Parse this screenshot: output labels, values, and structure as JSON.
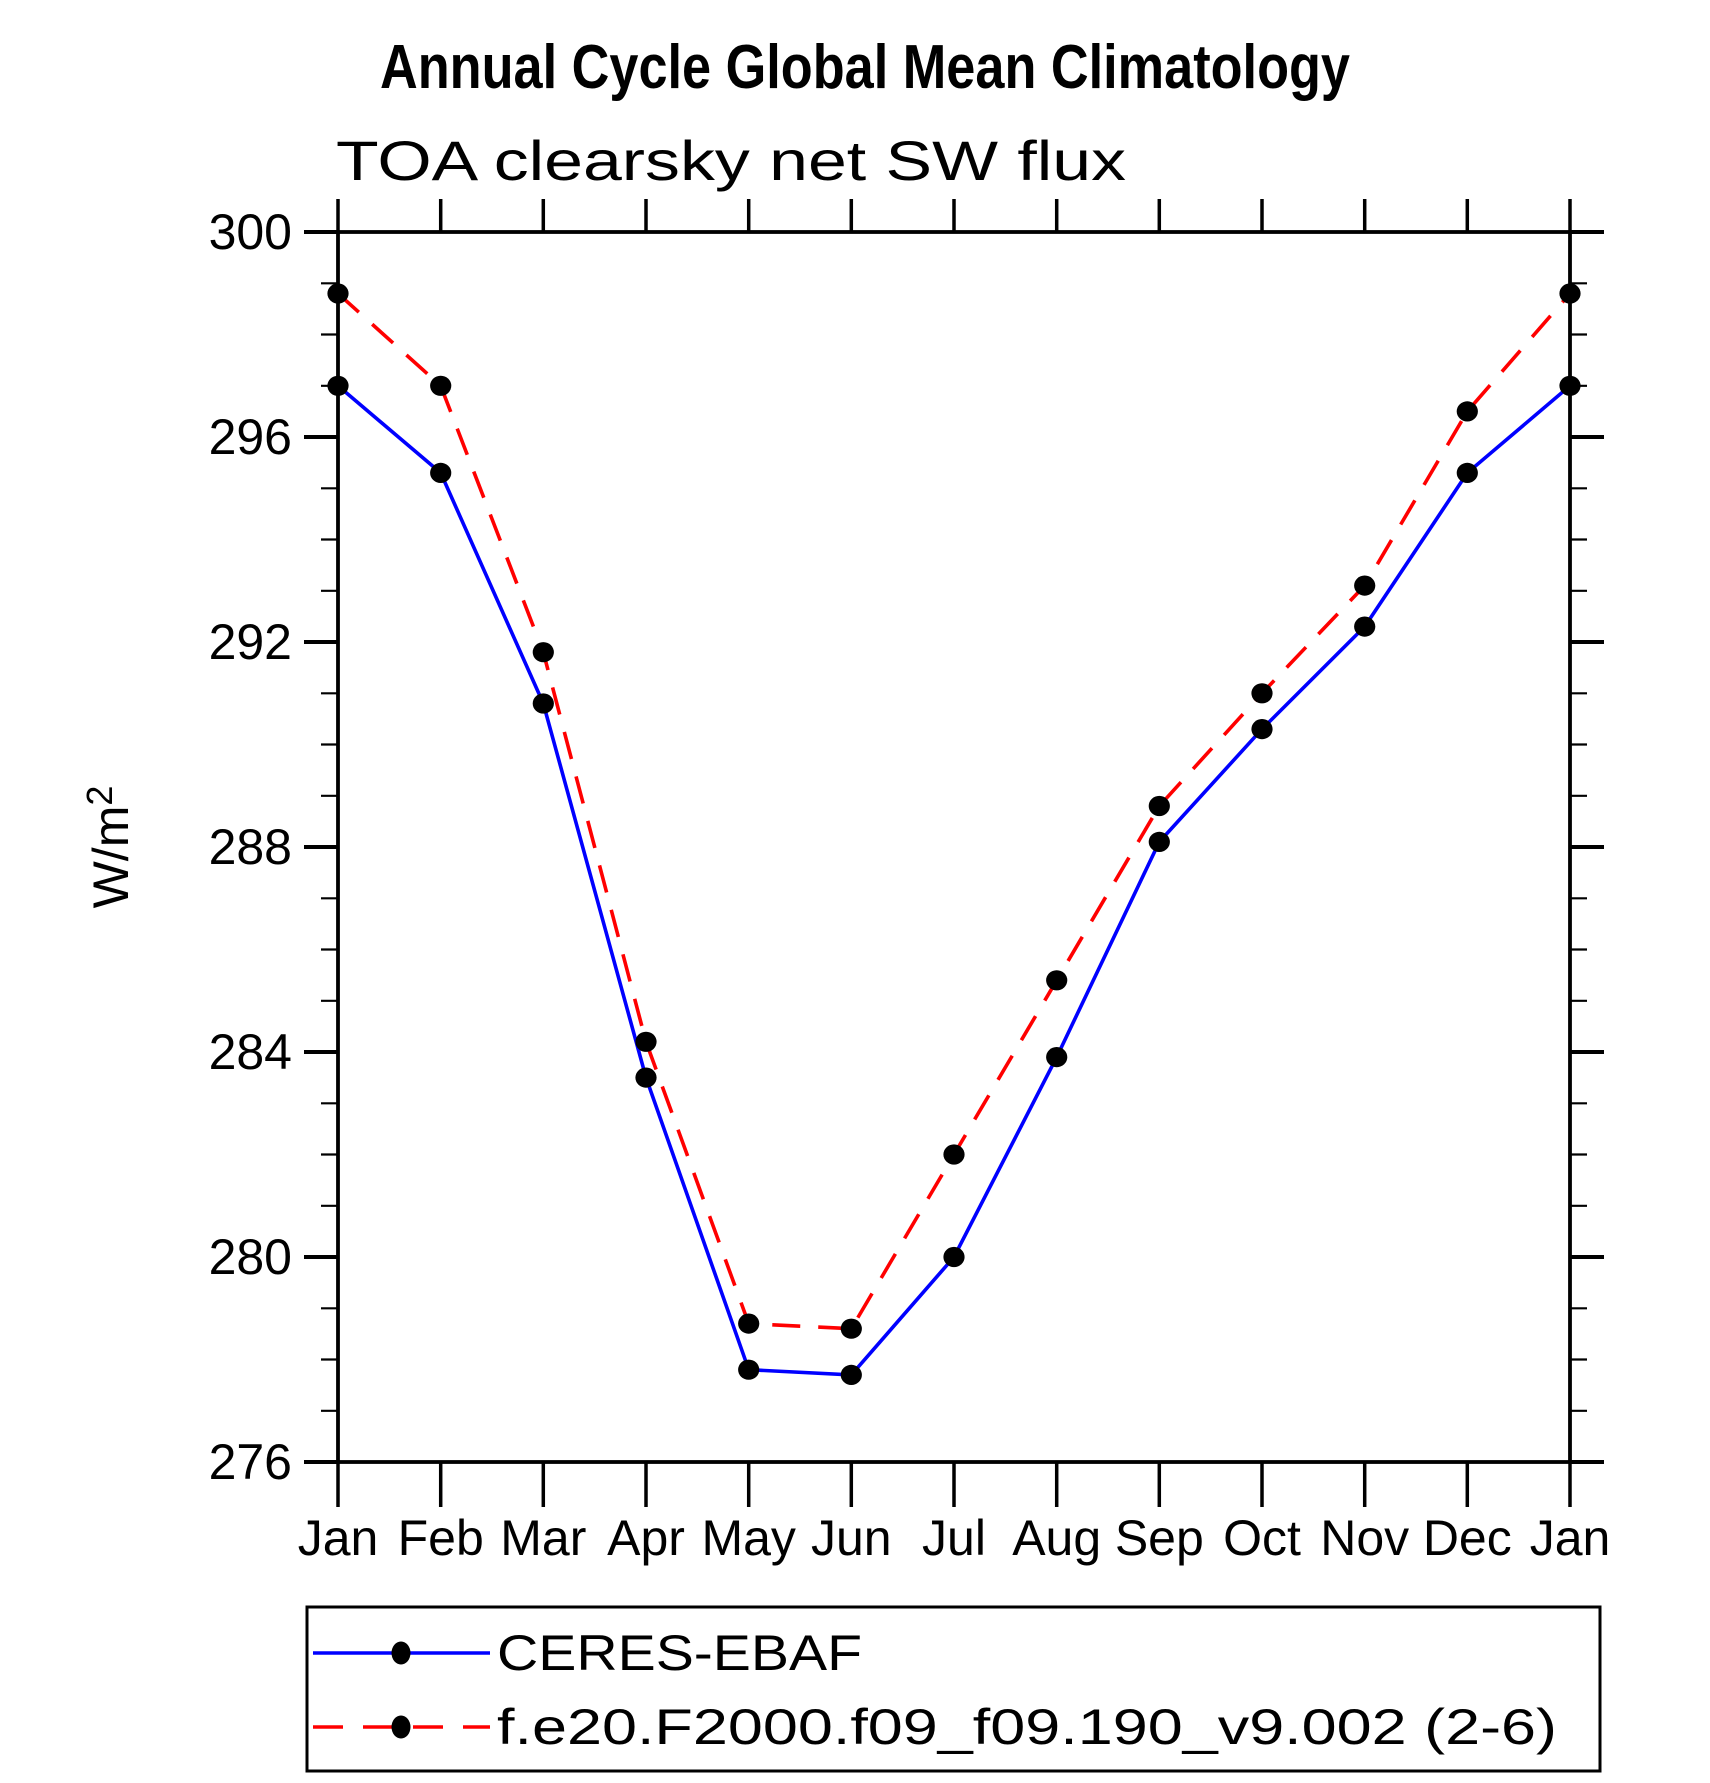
{
  "chart_data": {
    "type": "line",
    "title": "Annual Cycle Global Mean Climatology",
    "subtitle": "TOA clearsky net SW flux",
    "ylabel_base": "W/m",
    "ylabel_sup": "2",
    "ylim": [
      276,
      300
    ],
    "y_major_ticks": [
      276,
      280,
      284,
      288,
      292,
      296,
      300
    ],
    "y_minor_step": 1,
    "x": [
      "Jan",
      "Feb",
      "Mar",
      "Apr",
      "May",
      "Jun",
      "Jul",
      "Aug",
      "Sep",
      "Oct",
      "Nov",
      "Dec",
      "Jan"
    ],
    "series": [
      {
        "name": "CERES-EBAF",
        "color": "#0000ff",
        "line": "solid",
        "marker": "filled-circle",
        "marker_color": "#000000",
        "values": [
          297.0,
          295.3,
          290.8,
          283.5,
          277.8,
          277.7,
          280.0,
          283.9,
          288.1,
          290.3,
          292.3,
          295.3,
          297.0
        ]
      },
      {
        "name": "f.e20.F2000.f09_f09.190_v9.002 (2-6)",
        "color": "#ff0000",
        "line": "dashed",
        "marker": "filled-circle",
        "marker_color": "#000000",
        "values": [
          298.8,
          297.0,
          291.8,
          284.2,
          278.7,
          278.6,
          282.0,
          285.4,
          288.8,
          291.0,
          293.1,
          296.5,
          298.8
        ]
      }
    ],
    "legend_position": "bottom",
    "grid": false
  }
}
